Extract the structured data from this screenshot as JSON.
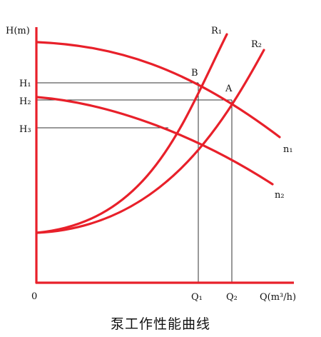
{
  "axes": {
    "y_label": "H(m)",
    "x_label": "Q(m³/h)",
    "origin": "0"
  },
  "labels": {
    "H1": "H₁",
    "H2": "H₂",
    "H3": "H₃",
    "Q1": "Q₁",
    "Q2": "Q₂",
    "R1": "R₁",
    "R2": "R₂",
    "n1": "n₁",
    "n2": "n₂",
    "B": "B",
    "A": "A"
  },
  "caption": "泵工作性能曲线",
  "colors": {
    "curve": "#e8202a",
    "axis": "#e8202a",
    "guide": "#333333"
  }
}
